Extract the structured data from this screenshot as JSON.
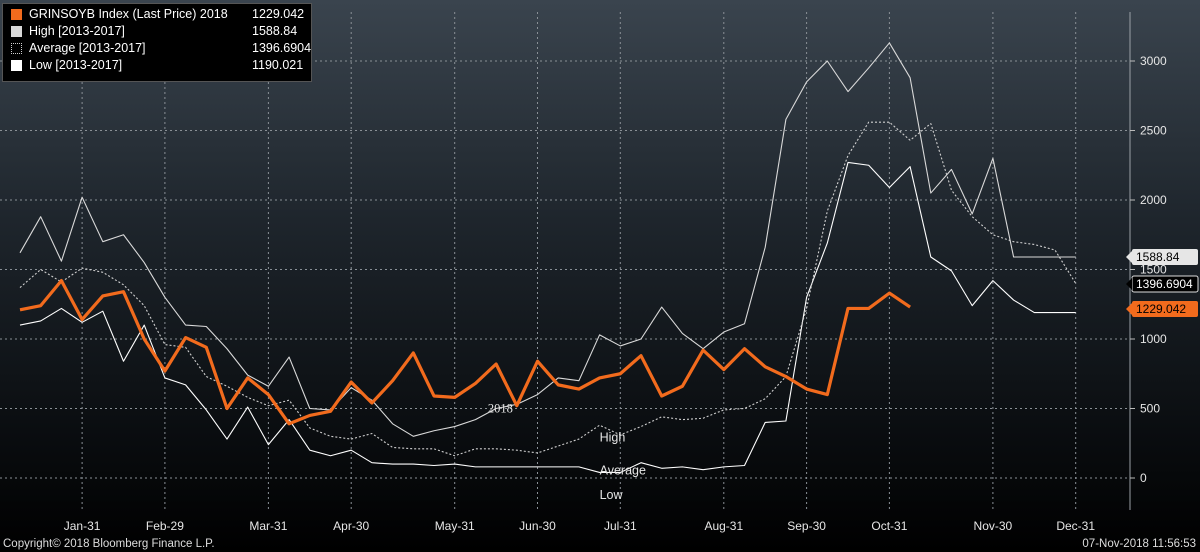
{
  "chart_data": {
    "type": "line",
    "x_tick_labels": [
      "Jan-31",
      "Feb-29",
      "Mar-31",
      "Apr-30",
      "May-31",
      "Jun-30",
      "Jul-31",
      "Aug-31",
      "Sep-30",
      "Oct-31",
      "Nov-30",
      "Dec-31"
    ],
    "x_tick_positions": [
      4,
      8,
      13,
      17,
      22,
      26,
      30,
      35,
      39,
      43,
      48,
      52
    ],
    "y_ticks": [
      0,
      500,
      1000,
      1500,
      2000,
      2500,
      3000
    ],
    "ylim": [
      -80,
      3300
    ],
    "xlim": [
      0,
      53
    ],
    "grid": true,
    "legend_position": "top-left",
    "series": [
      {
        "name": "GRINSOYB Index (Last Price) 2018",
        "legend_value": "1229.042",
        "end_label": "1229.042",
        "annotation": "2018",
        "color": "#f26b1d",
        "style": "thick",
        "x": [
          1,
          2,
          3,
          4,
          5,
          6,
          7,
          8,
          9,
          10,
          11,
          12,
          13,
          14,
          15,
          16,
          17,
          18,
          19,
          20,
          21,
          22,
          23,
          24,
          25,
          26,
          27,
          28,
          29,
          30,
          31,
          32,
          33,
          34,
          35,
          36,
          37,
          38,
          39,
          40,
          41,
          42,
          43,
          44
        ],
        "values": [
          1210,
          1240,
          1420,
          1140,
          1310,
          1340,
          1000,
          770,
          1010,
          940,
          500,
          720,
          600,
          390,
          450,
          480,
          690,
          540,
          700,
          900,
          590,
          580,
          680,
          820,
          520,
          840,
          670,
          640,
          720,
          750,
          880,
          590,
          660,
          920,
          780,
          930,
          800,
          730,
          640,
          600,
          1220,
          1220,
          1330,
          1230
        ]
      },
      {
        "name": "High [2013-2017]",
        "legend_value": "1588.84",
        "end_label": "1588.84",
        "annotation": "High",
        "color": "#d9d9d9",
        "style": "solid",
        "x": [
          1,
          2,
          3,
          4,
          5,
          6,
          7,
          8,
          9,
          10,
          11,
          12,
          13,
          14,
          15,
          16,
          17,
          18,
          19,
          20,
          21,
          22,
          23,
          24,
          25,
          26,
          27,
          28,
          29,
          30,
          31,
          32,
          33,
          34,
          35,
          36,
          37,
          38,
          39,
          40,
          41,
          42,
          43,
          44,
          45,
          46,
          47,
          48,
          49,
          50,
          51,
          52
        ],
        "values": [
          1620,
          1880,
          1560,
          2020,
          1700,
          1750,
          1550,
          1300,
          1100,
          1090,
          930,
          740,
          660,
          870,
          500,
          490,
          650,
          560,
          390,
          300,
          340,
          370,
          420,
          500,
          530,
          600,
          720,
          700,
          1030,
          950,
          1000,
          1230,
          1040,
          930,
          1050,
          1110,
          1660,
          2580,
          2850,
          3000,
          2780,
          2950,
          3130,
          2880,
          2050,
          2220,
          1900,
          2300,
          1590,
          1590,
          1590,
          1590
        ]
      },
      {
        "name": "Average [2013-2017]",
        "legend_value": "1396.6904",
        "end_label": "1396.6904",
        "annotation": "Average",
        "color": "#cfcfcf",
        "style": "dotted",
        "x": [
          1,
          2,
          3,
          4,
          5,
          6,
          7,
          8,
          9,
          10,
          11,
          12,
          13,
          14,
          15,
          16,
          17,
          18,
          19,
          20,
          21,
          22,
          23,
          24,
          25,
          26,
          27,
          28,
          29,
          30,
          31,
          32,
          33,
          34,
          35,
          36,
          37,
          38,
          39,
          40,
          41,
          42,
          43,
          44,
          45,
          46,
          47,
          48,
          49,
          50,
          51,
          52
        ],
        "values": [
          1370,
          1500,
          1410,
          1510,
          1480,
          1390,
          1240,
          960,
          940,
          730,
          660,
          580,
          520,
          560,
          360,
          300,
          280,
          320,
          220,
          210,
          210,
          160,
          210,
          210,
          200,
          180,
          230,
          280,
          380,
          310,
          370,
          440,
          420,
          430,
          490,
          500,
          570,
          730,
          1220,
          1920,
          2320,
          2560,
          2560,
          2430,
          2550,
          2070,
          1880,
          1750,
          1700,
          1680,
          1640,
          1400
        ]
      },
      {
        "name": "Low [2013-2017]",
        "legend_value": "1190.021",
        "end_label": "",
        "annotation": "Low",
        "color": "#ffffff",
        "style": "solid",
        "x": [
          1,
          2,
          3,
          4,
          5,
          6,
          7,
          8,
          9,
          10,
          11,
          12,
          13,
          14,
          15,
          16,
          17,
          18,
          19,
          20,
          21,
          22,
          23,
          24,
          25,
          26,
          27,
          28,
          29,
          30,
          31,
          32,
          33,
          34,
          35,
          36,
          37,
          38,
          39,
          40,
          41,
          42,
          43,
          44,
          45,
          46,
          47,
          48,
          49,
          50,
          51,
          52
        ],
        "values": [
          1100,
          1130,
          1220,
          1120,
          1200,
          840,
          1100,
          720,
          670,
          490,
          280,
          510,
          240,
          420,
          200,
          160,
          200,
          110,
          100,
          100,
          90,
          100,
          80,
          80,
          80,
          80,
          80,
          80,
          40,
          40,
          110,
          70,
          80,
          60,
          80,
          90,
          400,
          410,
          1300,
          1690,
          2270,
          2250,
          2090,
          2240,
          1590,
          1490,
          1240,
          1420,
          1280,
          1190,
          1190,
          1190
        ]
      }
    ]
  },
  "footer": {
    "copyright": "Copyright© 2018 Bloomberg Finance L.P.",
    "timestamp": "07-Nov-2018 11:56:53"
  }
}
